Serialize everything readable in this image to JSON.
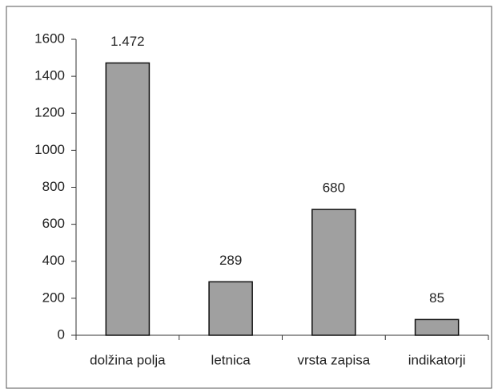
{
  "chart_data": {
    "type": "bar",
    "categories": [
      "dolžina polja",
      "letnica",
      "vrsta zapisa",
      "indikatorji"
    ],
    "values": [
      1472,
      289,
      680,
      85
    ],
    "value_labels": [
      "1.472",
      "289",
      "680",
      "85"
    ],
    "color": "#a0a0a0",
    "ylim": [
      0,
      1600
    ],
    "yticks": [
      0,
      200,
      400,
      600,
      800,
      1000,
      1200,
      1400,
      1600
    ],
    "grid": false
  }
}
